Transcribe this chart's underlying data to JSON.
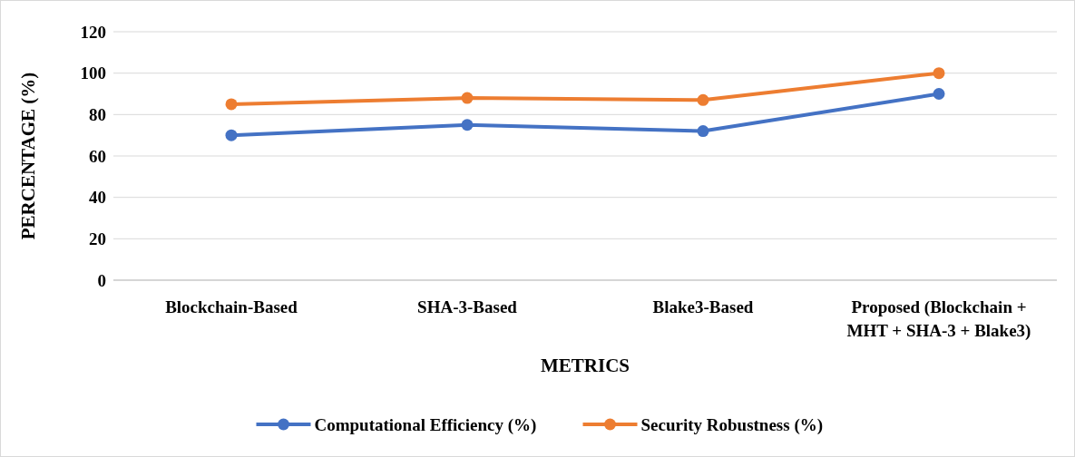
{
  "chart_data": {
    "type": "line",
    "xlabel": "METRICS",
    "ylabel": "PERCENTAGE (%)",
    "categories": [
      "Blockchain-Based",
      "SHA-3-Based",
      "Blake3-Based",
      "Proposed (Blockchain + MHT + SHA-3 + Blake3)"
    ],
    "series": [
      {
        "name": "Computational Efficiency (%)",
        "color": "#4472c4",
        "values": [
          70,
          75,
          72,
          90
        ]
      },
      {
        "name": "Security Robustness (%)",
        "color": "#ed7d31",
        "values": [
          85,
          88,
          87,
          100
        ]
      }
    ],
    "ylim": [
      0,
      120
    ],
    "yticks": [
      0,
      20,
      40,
      60,
      80,
      100,
      120
    ],
    "grid": "y",
    "legend": "bottom",
    "marker": "circle",
    "line_style": "solid"
  }
}
